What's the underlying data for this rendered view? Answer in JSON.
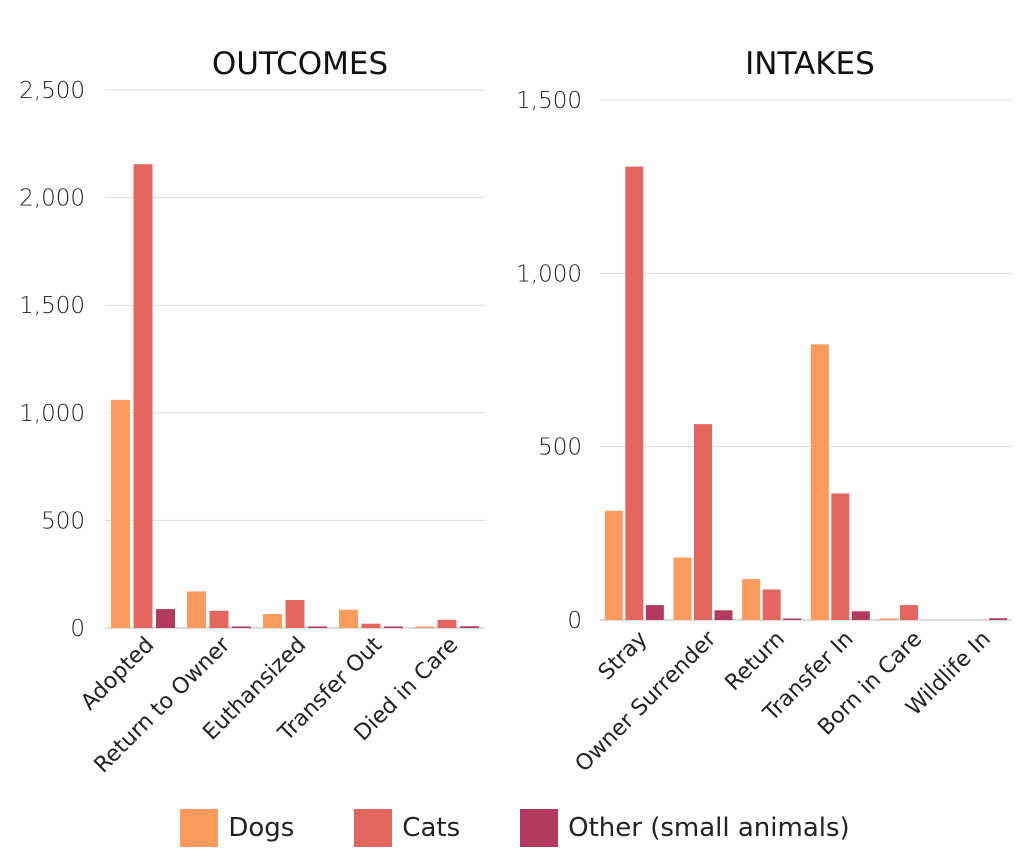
{
  "chart_data": [
    {
      "type": "bar",
      "title": "OUTCOMES",
      "xlabel": "",
      "ylabel": "",
      "ylim": [
        0,
        2500
      ],
      "y_ticks": [
        0,
        500,
        1000,
        1500,
        2000,
        2500
      ],
      "y_tick_labels": [
        "0",
        "500",
        "1,000",
        "1,500",
        "2,000",
        "2,500"
      ],
      "categories": [
        "Adopted",
        "Return to Owner",
        "Euthansized",
        "Transfer Out",
        "Died in Care"
      ],
      "series": [
        {
          "name": "Dogs",
          "values": [
            1060,
            170,
            65,
            85,
            5
          ]
        },
        {
          "name": "Cats",
          "values": [
            2155,
            80,
            130,
            20,
            38
          ]
        },
        {
          "name": "Other (small animals)",
          "values": [
            88,
            3,
            2,
            4,
            8
          ]
        }
      ],
      "grid": true
    },
    {
      "type": "bar",
      "title": "INTAKES",
      "xlabel": "",
      "ylabel": "",
      "ylim": [
        0,
        1500
      ],
      "y_ticks": [
        0,
        500,
        1000,
        1500
      ],
      "y_tick_labels": [
        "0",
        "500",
        "1,000",
        "1,500"
      ],
      "categories": [
        "Stray",
        "Owner Surrender",
        "Return",
        "Transfer In",
        "Born in Care",
        "Wildlife In"
      ],
      "series": [
        {
          "name": "Dogs",
          "values": [
            315,
            180,
            118,
            795,
            3,
            0
          ]
        },
        {
          "name": "Cats",
          "values": [
            1308,
            565,
            88,
            365,
            43,
            0
          ]
        },
        {
          "name": "Other (small animals)",
          "values": [
            43,
            28,
            2,
            25,
            0,
            5
          ]
        }
      ],
      "grid": true
    }
  ],
  "legend": {
    "placement": "bottom-center",
    "items": [
      {
        "label": "Dogs",
        "color": "#fd9a5d"
      },
      {
        "label": "Cats",
        "color": "#e5665e"
      },
      {
        "label": "Other (small animals)",
        "color": "#b33a5e"
      }
    ]
  },
  "colors": {
    "dogs": "#fd9a5d",
    "cats": "#e5665e",
    "other": "#b33a5e"
  }
}
